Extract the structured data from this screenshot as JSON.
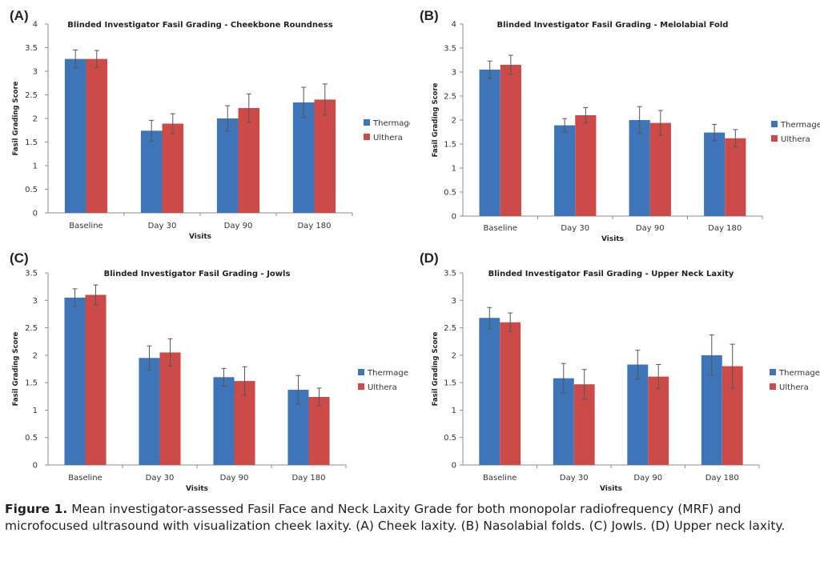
{
  "legend_labels": [
    "Thermage",
    "Ulthera"
  ],
  "colors": {
    "thermage": "#3e75b8",
    "ulthera": "#cc4b48",
    "axis": "#8c8c8c",
    "error": "#555555"
  },
  "caption": {
    "label": "Figure 1.",
    "text": "Mean investigator-assessed Fasil Face and Neck Laxity Grade for both monopolar radiofrequency (MRF) and microfocused ultrasound with visualization cheek laxity. (A) Cheek laxity. (B) Nasolabial folds. (C) Jowls. (D) Upper neck laxity."
  },
  "chart_data": [
    {
      "panel": "(A)",
      "type": "bar",
      "title": "Blinded Investigator Fasil Grading - Cheekbone Roundness",
      "xlabel": "Visits",
      "ylabel": "Fasil Grading Score",
      "ylim": [
        0,
        4
      ],
      "yticks": [
        "0",
        "0.5",
        "1",
        "1.5",
        "2",
        "2.5",
        "3",
        "3.5",
        "4"
      ],
      "categories": [
        "Baseline",
        "Day 30",
        "Day 90",
        "Day 180"
      ],
      "legend_position": "right",
      "series": [
        {
          "name": "Thermage",
          "values": [
            3.26,
            1.74,
            2.0,
            2.34
          ],
          "errors": [
            0.19,
            0.22,
            0.27,
            0.32
          ]
        },
        {
          "name": "Ulthera",
          "values": [
            3.26,
            1.89,
            2.22,
            2.4
          ],
          "errors": [
            0.18,
            0.21,
            0.3,
            0.33
          ]
        }
      ]
    },
    {
      "panel": "(B)",
      "type": "bar",
      "title": "Blinded Investigator Fasil Grading - Melolabial Fold",
      "xlabel": "Visits",
      "ylabel": "Fasil Grading Score",
      "ylim": [
        0,
        4
      ],
      "yticks": [
        "0",
        "0.5",
        "1",
        "1.5",
        "2",
        "2.5",
        "3",
        "3.5",
        "4"
      ],
      "categories": [
        "Baseline",
        "Day 30",
        "Day 90",
        "Day 180"
      ],
      "legend_position": "right",
      "series": [
        {
          "name": "Thermage",
          "values": [
            3.05,
            1.89,
            2.0,
            1.74
          ],
          "errors": [
            0.18,
            0.14,
            0.28,
            0.17
          ]
        },
        {
          "name": "Ulthera",
          "values": [
            3.15,
            2.1,
            1.94,
            1.62
          ],
          "errors": [
            0.2,
            0.16,
            0.26,
            0.18
          ]
        }
      ]
    },
    {
      "panel": "(C)",
      "type": "bar",
      "title": "Blinded Investigator Fasil Grading - Jowls",
      "xlabel": "Visits",
      "ylabel": "Fasil Grading Score",
      "ylim": [
        0,
        3.5
      ],
      "yticks": [
        "0",
        "0.5",
        "1",
        "1.5",
        "2",
        "2.5",
        "3",
        "3.5"
      ],
      "categories": [
        "Baseline",
        "Day 30",
        "Day 90",
        "Day 180"
      ],
      "legend_position": "right",
      "series": [
        {
          "name": "Thermage",
          "values": [
            3.05,
            1.95,
            1.6,
            1.37
          ],
          "errors": [
            0.16,
            0.22,
            0.16,
            0.26
          ]
        },
        {
          "name": "Ulthera",
          "values": [
            3.1,
            2.05,
            1.53,
            1.24
          ],
          "errors": [
            0.18,
            0.25,
            0.26,
            0.16
          ]
        }
      ]
    },
    {
      "panel": "(D)",
      "type": "bar",
      "title": "Blinded Investigator Fasil Grading - Upper Neck Laxity",
      "xlabel": "Visits",
      "ylabel": "Fasil Grading Score",
      "ylim": [
        0,
        3.5
      ],
      "yticks": [
        "0",
        "0.5",
        "1",
        "1.5",
        "2",
        "2.5",
        "3",
        "3.5"
      ],
      "categories": [
        "Baseline",
        "Day 30",
        "Day 90",
        "Day 180"
      ],
      "legend_position": "right",
      "series": [
        {
          "name": "Thermage",
          "values": [
            2.68,
            1.58,
            1.83,
            2.0
          ],
          "errors": [
            0.19,
            0.27,
            0.26,
            0.37
          ]
        },
        {
          "name": "Ulthera",
          "values": [
            2.6,
            1.47,
            1.61,
            1.8
          ],
          "errors": [
            0.17,
            0.27,
            0.22,
            0.4
          ]
        }
      ]
    }
  ]
}
